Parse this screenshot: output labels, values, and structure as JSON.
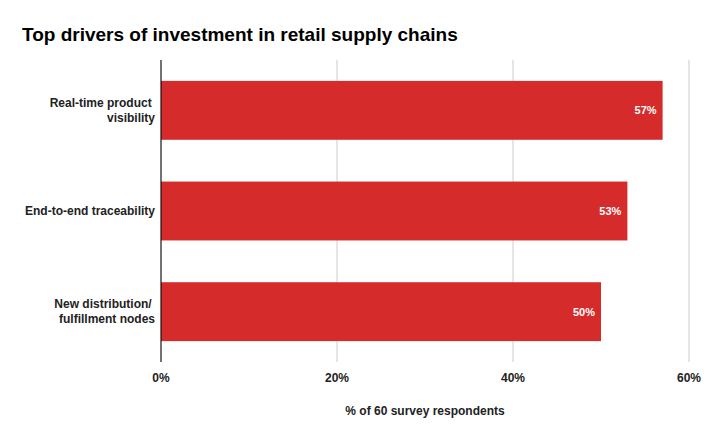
{
  "chart_data": {
    "type": "bar",
    "orientation": "horizontal",
    "title": "Top drivers of investment in retail supply chains",
    "xlabel": "% of 60 survey respondents",
    "categories": [
      "Real-time product visibility",
      "End-to-end traceability",
      "New distribution/ fulfillment nodes"
    ],
    "values": [
      57,
      53,
      50
    ],
    "value_labels": [
      "57%",
      "53%",
      "50%"
    ],
    "color": "#d52b2b",
    "xlim": [
      0,
      60
    ],
    "xticks": [
      {
        "value": 0,
        "label": "0%"
      },
      {
        "value": 20,
        "label": "20%"
      },
      {
        "value": 40,
        "label": "40%"
      },
      {
        "value": 60,
        "label": "60%"
      }
    ],
    "grid": true,
    "data_labels": true
  }
}
